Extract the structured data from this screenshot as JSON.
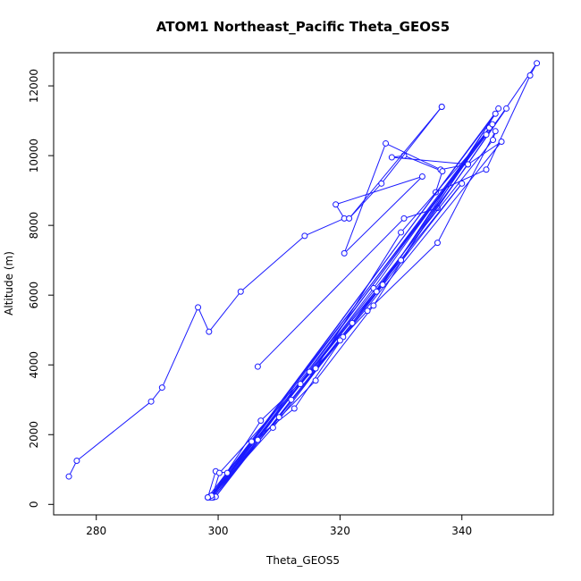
{
  "chart_data": {
    "type": "scatter",
    "mode": "lines+points",
    "title": "ATOM1 Northeast_Pacific Theta_GEOS5",
    "xlabel": "Theta_GEOS5",
    "ylabel": "Altitude (m)",
    "xlim": [
      273,
      355
    ],
    "ylim": [
      -300,
      12950
    ],
    "xticks": [
      280,
      300,
      320,
      340
    ],
    "yticks": [
      0,
      2000,
      4000,
      6000,
      8000,
      10000,
      12000
    ],
    "grid": false,
    "legend": "none",
    "colors": {
      "series": "#1a1aff",
      "axis": "#000000"
    },
    "series": [
      {
        "x": [
          275.5,
          276.8,
          289.0,
          290.8,
          296.7,
          298.5,
          303.7,
          314.2,
          320.7,
          319.3,
          333.5,
          320.7,
          327.5,
          336.5,
          341.0,
          328.5,
          330.5,
          336.8,
          335.7,
          344.0,
          351.2,
          352.3,
          336.0,
          330.5,
          306.5
        ],
        "y": [
          800,
          1250,
          2950,
          3350,
          5650,
          4950,
          6100,
          7700,
          8200,
          8600,
          9400,
          7200,
          10350,
          9600,
          9750,
          9950,
          10000,
          9550,
          8950,
          9600,
          12300,
          12650,
          8500,
          8200,
          3950
        ]
      },
      {
        "x": [
          336.7,
          321.5,
          326.8,
          336.7
        ],
        "y": [
          11400,
          8200,
          9200,
          11400
        ]
      },
      {
        "x": [
          298.3,
          299.6,
          301.5,
          305.5,
          312.5,
          320.5,
          324.5,
          336.0,
          345.5,
          345.1,
          298.7,
          306.5,
          316.0,
          325.5,
          346.0,
          299.0,
          309.0,
          322.0,
          341.0,
          346.5,
          299.2,
          313.5,
          325.5,
          344.5,
          298.9,
          310.0,
          326.0,
          345.0,
          299.6,
          312.0,
          327.0,
          345.5,
          298.6,
          315.0,
          330.0,
          347.3,
          299.0,
          300.2,
          320.0,
          340.0,
          298.9,
          307.0,
          316.0,
          330.0,
          344.0,
          298.3
        ],
        "y": [
          200,
          950,
          900,
          1800,
          2750,
          4800,
          5550,
          7500,
          10700,
          10450,
          200,
          1850,
          3550,
          5700,
          11350,
          250,
          2200,
          5200,
          9750,
          10400,
          200,
          3450,
          6200,
          10800,
          230,
          2500,
          6100,
          10900,
          220,
          3000,
          6300,
          11200,
          210,
          3800,
          7000,
          11350,
          200,
          900,
          4700,
          9200,
          250,
          2400,
          3900,
          7800,
          10600,
          200
        ]
      }
    ]
  }
}
